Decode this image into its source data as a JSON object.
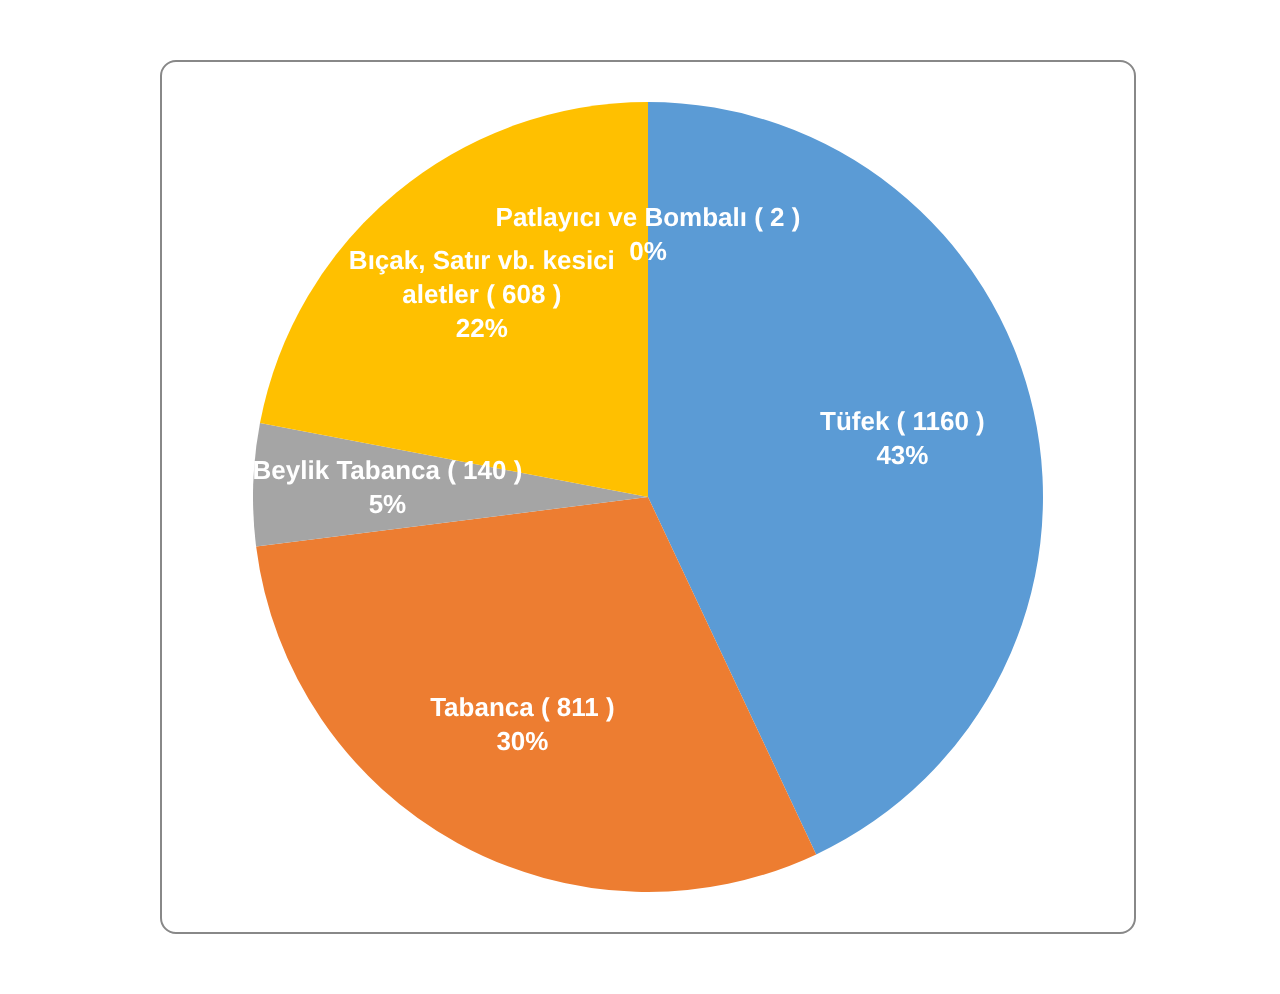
{
  "chart_data": {
    "type": "pie",
    "categories": [
      "Tüfek ( 1160 )",
      "Tabanca ( 811 )",
      "Beylik Tabanca ( 140 )",
      "Bıçak, Satır vb. kesici aletler ( 608 )",
      "Patlayıcı ve Bombalı ( 2 )"
    ],
    "values": [
      43,
      30,
      5,
      22,
      0
    ],
    "value_labels": [
      "43%",
      "30%",
      "5%",
      "22%",
      "0%"
    ],
    "colors": [
      "#5b9bd5",
      "#ed7d31",
      "#a5a5a5",
      "#ffc000",
      "#4472c4"
    ],
    "legend": false
  }
}
